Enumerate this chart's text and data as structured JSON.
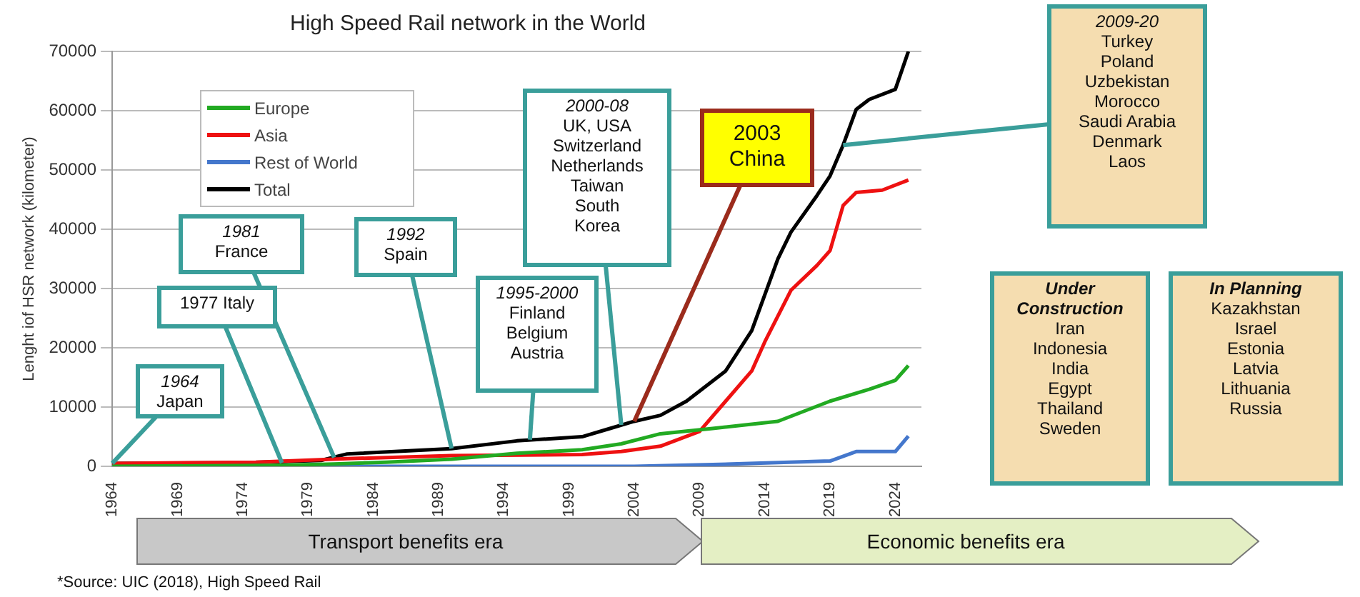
{
  "chart_data": {
    "type": "line",
    "title": "High Speed Rail network in the World",
    "ylabel": "Lenght iof HSR network (kilometer)",
    "xlim": [
      1964,
      2026
    ],
    "xticks": [
      1964,
      1969,
      1974,
      1979,
      1984,
      1989,
      1994,
      1999,
      2004,
      2009,
      2014,
      2019,
      2024
    ],
    "ylim": [
      0,
      70000
    ],
    "yticks": [
      0,
      10000,
      20000,
      30000,
      40000,
      50000,
      60000,
      70000
    ],
    "grid": "y",
    "legend": "top left",
    "marker": "none",
    "line_style": "solid",
    "series": [
      {
        "name": "Europe",
        "color": "#22aa22",
        "x": [
          1964,
          1977,
          1981,
          1985,
          1990,
          1995,
          2000,
          2003,
          2006,
          2010,
          2015,
          2019,
          2022,
          2024,
          2025
        ],
        "values": [
          0,
          200,
          400,
          700,
          1200,
          2200,
          2800,
          3800,
          5500,
          6400,
          7600,
          11000,
          13000,
          14500,
          17000
        ]
      },
      {
        "name": "Asia",
        "color": "#ee1111",
        "x": [
          1964,
          1975,
          1982,
          1990,
          2000,
          2003,
          2006,
          2009,
          2011,
          2013,
          2014,
          2016,
          2018,
          2019,
          2020,
          2021,
          2023,
          2025
        ],
        "values": [
          500,
          700,
          1300,
          1800,
          2000,
          2500,
          3400,
          5900,
          11000,
          16100,
          21000,
          29700,
          33900,
          36400,
          44000,
          46200,
          46600,
          48300
        ]
      },
      {
        "name": "Rest of World",
        "color": "#4477cc",
        "x": [
          1964,
          2004,
          2010,
          2019,
          2021,
          2024,
          2025
        ],
        "values": [
          0,
          0,
          300,
          900,
          2500,
          2500,
          5100
        ]
      },
      {
        "name": "Total",
        "color": "#000000",
        "x": [
          1964,
          1974,
          1980,
          1982,
          1990,
          1995,
          2000,
          2002,
          2004,
          2006,
          2008,
          2011,
          2013,
          2015,
          2016,
          2018,
          2019,
          2020,
          2021,
          2022,
          2024,
          2025
        ],
        "values": [
          500,
          600,
          1000,
          2100,
          3000,
          4300,
          5000,
          6300,
          7600,
          8600,
          11000,
          16100,
          22900,
          35000,
          39500,
          45700,
          49000,
          54200,
          60200,
          61900,
          63600,
          70000
        ]
      }
    ],
    "annotations": [
      {
        "text": "1964\nJapan",
        "x": 1964,
        "y": 500
      },
      {
        "text": "1977 Italy",
        "x": 1977,
        "y": 600
      },
      {
        "text": "1981\nFrance",
        "x": 1981,
        "y": 1500
      },
      {
        "text": "1992\nSpain",
        "x": 1990,
        "y": 3000
      },
      {
        "text": "1995-2000\nFinland\nBelgium\nAustria",
        "x": 1996,
        "y": 4500
      },
      {
        "text": "2000-08\nUK, USA\nSwitzerland\nNetherlands\nTaiwan\nSouth\nKorea",
        "x": 2003,
        "y": 7000
      },
      {
        "text": "2003\nChina",
        "x": 2004,
        "y": 7600
      },
      {
        "text": "2009-20\nTurkey\nPoland\nUzbekistan\nMorocco\nSaudi Arabia\nDenmark\nLaos",
        "x": 2020,
        "y": 54200
      },
      "Under\nConstruction\nIran\nIndonesia\nIndia\nEgypt\nThailand\nSweden",
      "In Planning\nKazakhstan\nIsrael\nEstonia\nLatvia\nLithuania\nRussia",
      "Transport benefits era",
      "Economic benefits era",
      "*Source: UIC (2018), High Speed Rail"
    ]
  }
}
